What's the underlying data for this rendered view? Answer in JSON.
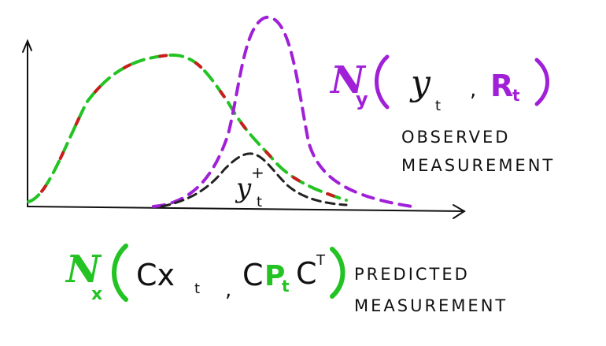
{
  "colors": {
    "ink": "#111111",
    "green": "#22c322",
    "red": "#c81e1e",
    "purple": "#a020d8",
    "dashed_black": "#222222"
  },
  "observed_label": {
    "line1": "OBSERVED",
    "line2": "MEASUREMENT"
  },
  "predicted_label": {
    "line1": "PREDICTED",
    "line2": "MEASUREMENT"
  },
  "observed_formula": {
    "script_n": "N",
    "subscript": "y",
    "arg1": "y",
    "arg1_sub": "t",
    "sep": ",",
    "arg2": "R",
    "arg2_sub": "t"
  },
  "predicted_formula": {
    "script_n": "N",
    "subscript": "x",
    "arg1": "Cx",
    "arg1_sub": "t",
    "sep": ",",
    "arg2_c": "C",
    "arg2_p": "P",
    "arg2_p_sub": "t",
    "arg2_ct": "C",
    "arg2_ct_sup": "T"
  },
  "product_label": {
    "text": "y",
    "sup": "+",
    "sub": "t"
  }
}
